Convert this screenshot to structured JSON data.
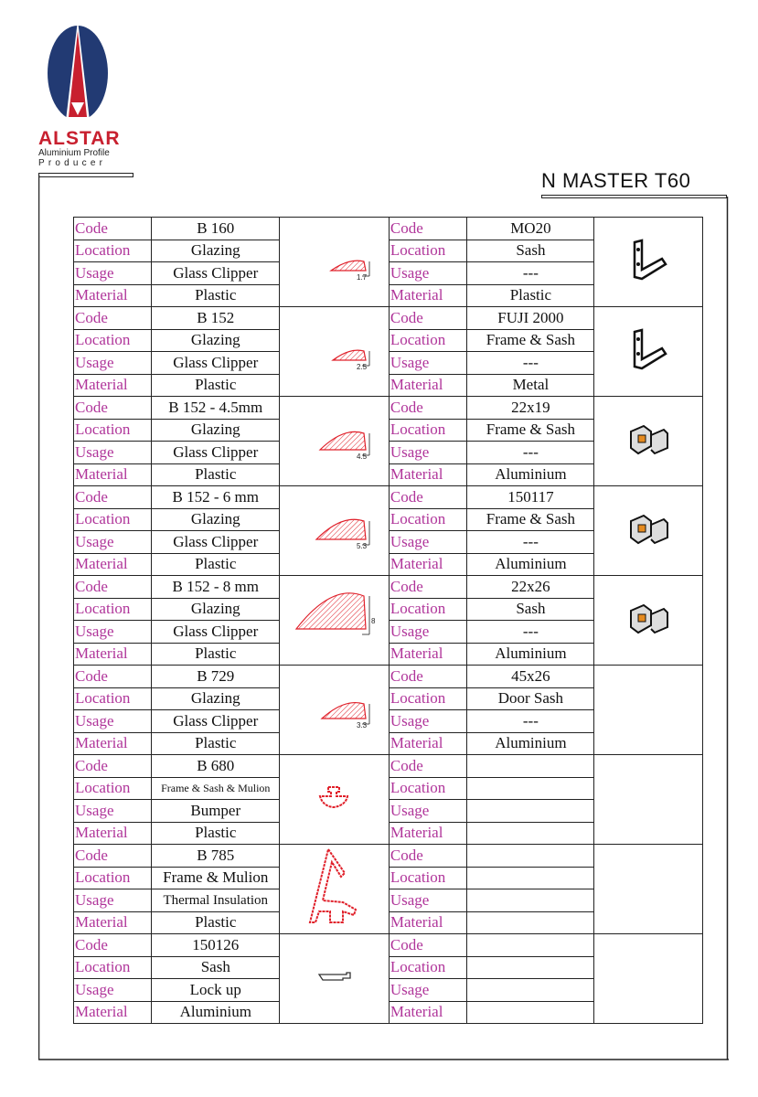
{
  "brand": {
    "name": "ALSTAR",
    "tagline1": "Aluminium Profile",
    "tagline2": "Producer",
    "logo_colors": {
      "blue": "#223a73",
      "red": "#c8202f"
    }
  },
  "title": "N MASTER T60",
  "field_labels": [
    "Code",
    "Location",
    "Usage",
    "Material"
  ],
  "label_color": "#b0359a",
  "rows": [
    {
      "left": {
        "code": "B 160",
        "location": "Glazing",
        "usage": "Glass Clipper",
        "material": "Plastic",
        "dimension": "1.7",
        "icon": "glazing-bead-profile"
      },
      "right": {
        "code": "MO20",
        "location": "Sash",
        "usage": "---",
        "material": "Plastic",
        "icon": "corner-bracket"
      }
    },
    {
      "left": {
        "code": "B 152",
        "location": "Glazing",
        "usage": "Glass Clipper",
        "material": "Plastic",
        "dimension": "2.5",
        "icon": "glazing-bead-profile"
      },
      "right": {
        "code": "FUJI 2000",
        "location": "Frame & Sash",
        "usage": "---",
        "material": "Metal",
        "icon": "corner-bracket"
      }
    },
    {
      "left": {
        "code": "B 152 - 4.5mm",
        "location": "Glazing",
        "usage": "Glass Clipper",
        "material": "Plastic",
        "dimension": "4.5",
        "icon": "glazing-bead-profile"
      },
      "right": {
        "code": "22x19",
        "location": "Frame & Sash",
        "usage": "---",
        "material": "Aluminium",
        "icon": "corner-cleat"
      }
    },
    {
      "left": {
        "code": "B 152 - 6 mm",
        "location": "Glazing",
        "usage": "Glass Clipper",
        "material": "Plastic",
        "dimension": "5.3",
        "icon": "glazing-bead-profile"
      },
      "right": {
        "code": "150117",
        "location": "Frame & Sash",
        "usage": "---",
        "material": "Aluminium",
        "icon": "corner-cleat"
      }
    },
    {
      "left": {
        "code": "B 152 - 8 mm",
        "location": "Glazing",
        "usage": "Glass Clipper",
        "material": "Plastic",
        "dimension": "8",
        "icon": "glazing-bead-profile"
      },
      "right": {
        "code": "22x26",
        "location": "Sash",
        "usage": "---",
        "material": "Aluminium",
        "icon": "corner-cleat"
      }
    },
    {
      "left": {
        "code": "B 729",
        "location": "Glazing",
        "usage": "Glass Clipper",
        "material": "Plastic",
        "dimension": "3.3",
        "icon": "glazing-bead-profile"
      },
      "right": {
        "code": "45x26",
        "location": "Door Sash",
        "usage": "---",
        "material": "Aluminium",
        "icon": ""
      }
    },
    {
      "left": {
        "code": "B 680",
        "location": "Frame & Sash & Mulion",
        "usage": "Bumper",
        "material": "Plastic",
        "dimension": "",
        "icon": "bumper-profile"
      },
      "right": {
        "code": "",
        "location": "",
        "usage": "",
        "material": "",
        "icon": ""
      }
    },
    {
      "left": {
        "code": "B 785",
        "location": "Frame & Mulion",
        "usage": "Thermal Insulation",
        "material": "Plastic",
        "dimension": "",
        "icon": "thermal-insulation-profile"
      },
      "right": {
        "code": "",
        "location": "",
        "usage": "",
        "material": "",
        "icon": ""
      }
    },
    {
      "left": {
        "code": "150126",
        "location": "Sash",
        "usage": "Lock up",
        "material": "Aluminium",
        "dimension": "",
        "icon": "lock-profile"
      },
      "right": {
        "code": "",
        "location": "",
        "usage": "",
        "material": "",
        "icon": ""
      }
    }
  ]
}
